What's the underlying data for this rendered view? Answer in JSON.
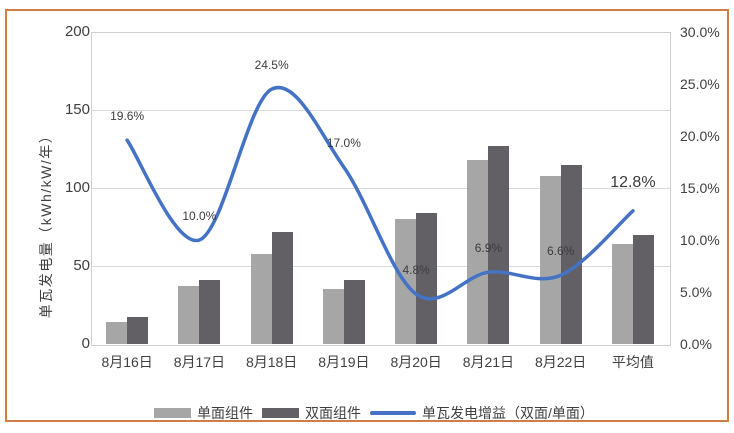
{
  "chart_data": {
    "type": "bar",
    "subtype": "combo-bar-line-dual-axis",
    "categories": [
      "8月16日",
      "8月17日",
      "8月18日",
      "8月19日",
      "8月20日",
      "8月21日",
      "8月22日",
      "平均值"
    ],
    "series": [
      {
        "name": "单面组件",
        "kind": "bar",
        "axis": "left",
        "color": "#a6a6a6",
        "values": [
          14,
          37,
          58,
          35,
          80,
          118,
          108,
          64
        ]
      },
      {
        "name": "双面组件",
        "kind": "bar",
        "axis": "left",
        "color": "#636065",
        "values": [
          17,
          41,
          72,
          41,
          84,
          127,
          115,
          70
        ]
      },
      {
        "name": "单瓦发电增益（双面/单面）",
        "kind": "line",
        "axis": "right",
        "color": "#4472c4",
        "smooth": true,
        "values": [
          19.6,
          10.0,
          24.5,
          17.0,
          4.8,
          6.9,
          6.6,
          12.8
        ],
        "point_labels": [
          "19.6%",
          "10.0%",
          "24.5%",
          "17.0%",
          "4.8%",
          "6.9%",
          "6.6%",
          "12.8%"
        ],
        "point_label_sizes": [
          12,
          12,
          12,
          12,
          12,
          12,
          12,
          16
        ]
      }
    ],
    "left_axis": {
      "title": "单瓦发电量（kWh/kW/年）",
      "min": 0,
      "max": 200,
      "ticks": [
        "200",
        "150",
        "100",
        "50",
        "0"
      ]
    },
    "right_axis": {
      "min": 0,
      "max": 30,
      "ticks": [
        "30.0%",
        "25.0%",
        "20.0%",
        "15.0%",
        "10.0%",
        "5.0%",
        "0.0%"
      ]
    },
    "grid": true,
    "legend_position": "bottom",
    "plot_border_color": "#d0cece",
    "gridline_color": "#d9d9d9",
    "frame_border_color": "#cf7f44",
    "text_color": "#404040"
  }
}
